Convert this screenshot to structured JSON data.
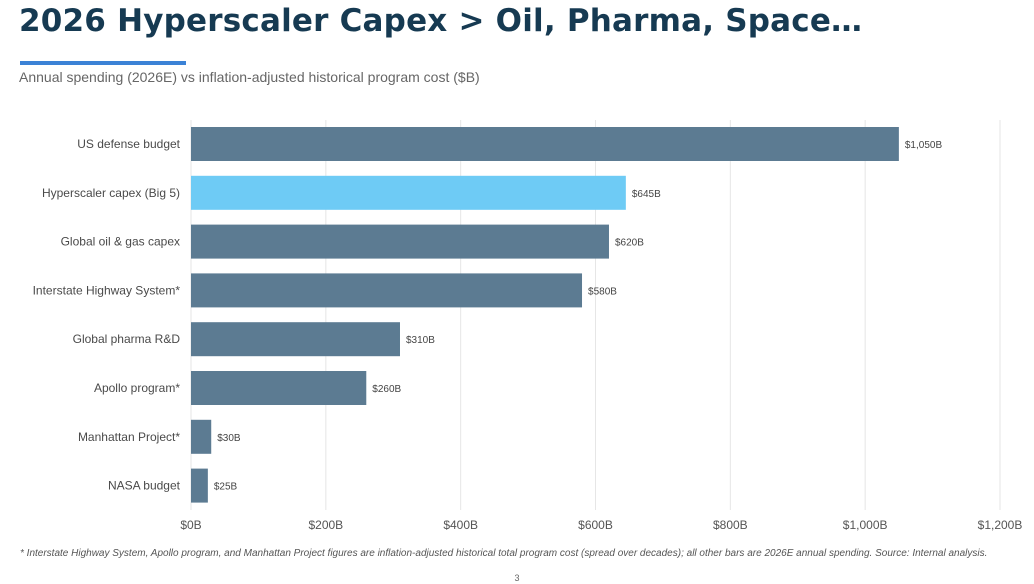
{
  "header": {
    "title": "2026 Hyperscaler Capex > Oil, Pharma, Space…",
    "subtitle": "Annual spending (2026E) vs inflation-adjusted historical program cost ($B)"
  },
  "colors": {
    "title": "#163a52",
    "accent_underline": "#3b82d6",
    "bar_default": "#5c7b92",
    "bar_highlight": "#6ecbf5",
    "gridline": "#e6e6e6"
  },
  "chart_data": {
    "type": "bar",
    "orientation": "horizontal",
    "title": "",
    "xlabel": "",
    "ylabel": "",
    "categories": [
      "US defense budget",
      "Hyperscaler capex (Big 5)",
      "Global oil & gas capex",
      "Interstate Highway System*",
      "Global pharma R&D",
      "Apollo program*",
      "Manhattan Project*",
      "NASA budget"
    ],
    "values": [
      1050,
      645,
      620,
      580,
      310,
      260,
      30,
      25
    ],
    "data_labels": [
      "$1,050B",
      "$645B",
      "$620B",
      "$580B",
      "$310B",
      "$260B",
      "$30B",
      "$25B"
    ],
    "highlight_index": 1,
    "xlim": [
      0,
      1200
    ],
    "x_ticks": [
      0,
      200,
      400,
      600,
      800,
      1000,
      1200
    ],
    "x_tick_labels": [
      "$0B",
      "$200B",
      "$400B",
      "$600B",
      "$800B",
      "$1,000B",
      "$1,200B"
    ],
    "grid": true,
    "legend": "none"
  },
  "footer": {
    "footnote": "* Interstate Highway System, Apollo program, and Manhattan Project figures are inflation-adjusted historical total program cost (spread over decades); all other bars are 2026E annual spending. Source: Internal analysis.",
    "page_number": "3"
  }
}
